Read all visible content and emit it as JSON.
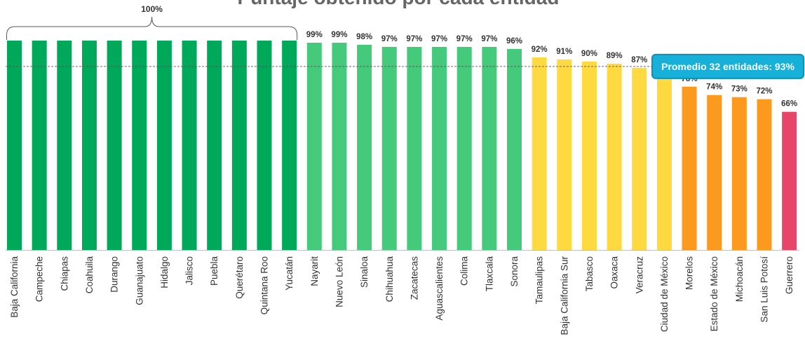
{
  "chart_data": {
    "type": "bar",
    "title": "Puntaje obtenido por cada entidad",
    "categories": [
      "Baja California",
      "Campeche",
      "Chiapas",
      "Coahuila",
      "Durango",
      "Guanajuato",
      "Hidalgo",
      "Jalisco",
      "Puebla",
      "Querétaro",
      "Quintana Roo",
      "Yucatán",
      "Nayarit",
      "Nuevo León",
      "Sinaloa",
      "Chihuahua",
      "Zacatecas",
      "Aguascalientes",
      "Colima",
      "Tlaxcala",
      "Sonora",
      "Tamaulipas",
      "Baja California Sur",
      "Tabasco",
      "Oaxaca",
      "Veracruz",
      "Ciudad de México",
      "Morelos",
      "Estado de México",
      "Michoacán",
      "San Luis Potosí",
      "Guerrero"
    ],
    "values": [
      100,
      100,
      100,
      100,
      100,
      100,
      100,
      100,
      100,
      100,
      100,
      100,
      99,
      99,
      98,
      97,
      97,
      97,
      97,
      97,
      96,
      92,
      91,
      90,
      89,
      87,
      85,
      78,
      74,
      73,
      72,
      66
    ],
    "value_labels": [
      "",
      "",
      "",
      "",
      "",
      "",
      "",
      "",
      "",
      "",
      "",
      "",
      "99%",
      "99%",
      "98%",
      "97%",
      "97%",
      "97%",
      "97%",
      "97%",
      "96%",
      "92%",
      "91%",
      "90%",
      "89%",
      "87%",
      "85%",
      "78%",
      "74%",
      "73%",
      "72%",
      "66%"
    ],
    "colors": [
      "#00a85a",
      "#00a85a",
      "#00a85a",
      "#00a85a",
      "#00a85a",
      "#00a85a",
      "#00a85a",
      "#00a85a",
      "#00a85a",
      "#00a85a",
      "#00a85a",
      "#00a85a",
      "#45c97a",
      "#45c97a",
      "#45c97a",
      "#45c97a",
      "#45c97a",
      "#45c97a",
      "#45c97a",
      "#45c97a",
      "#45c97a",
      "#ffd940",
      "#ffd940",
      "#ffd940",
      "#ffd940",
      "#ffd940",
      "#ffd940",
      "#fb9a1e",
      "#fb9a1e",
      "#fb9a1e",
      "#fb9a1e",
      "#e8456b"
    ],
    "ylim": [
      0,
      100
    ],
    "grid": false,
    "bracket": {
      "label": "100%",
      "from_index": 0,
      "to_index": 11
    },
    "average": {
      "value": 93,
      "label": "Promedio 32 entidades: 93%",
      "line_color": "#555555",
      "box_color": "#17b0d8",
      "box_border": "#0e8fb3"
    }
  }
}
